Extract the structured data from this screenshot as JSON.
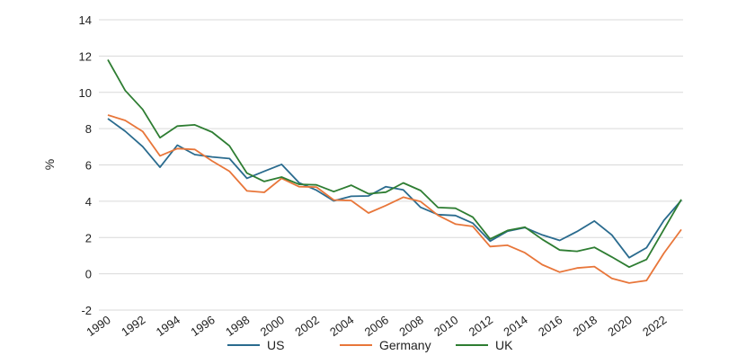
{
  "chart_data": {
    "type": "line",
    "ylabel": "%",
    "ylim": [
      -2,
      14
    ],
    "y_ticks": [
      "-2",
      "0",
      "2",
      "4",
      "6",
      "8",
      "10",
      "12",
      "14"
    ],
    "xlim": [
      1990,
      2023
    ],
    "x_tick_labels": [
      "1990",
      "1992",
      "1994",
      "1996",
      "1998",
      "2000",
      "2002",
      "2004",
      "2006",
      "2008",
      "2010",
      "2012",
      "2014",
      "2016",
      "2018",
      "2020",
      "2022"
    ],
    "x": [
      1990,
      1991,
      1992,
      1993,
      1994,
      1995,
      1996,
      1997,
      1998,
      1999,
      2000,
      2001,
      2002,
      2003,
      2004,
      2005,
      2006,
      2007,
      2008,
      2009,
      2010,
      2011,
      2012,
      2013,
      2014,
      2015,
      2016,
      2017,
      2018,
      2019,
      2020,
      2021,
      2022,
      2023
    ],
    "grid": "horizontal",
    "legend_position": "bottom",
    "series": [
      {
        "name": "US",
        "color": "#2a6b8e",
        "values": [
          8.55,
          7.86,
          7.01,
          5.87,
          7.09,
          6.57,
          6.44,
          6.35,
          5.26,
          5.65,
          6.03,
          5.02,
          4.61,
          4.02,
          4.27,
          4.29,
          4.8,
          4.63,
          3.66,
          3.26,
          3.21,
          2.79,
          1.8,
          2.35,
          2.54,
          2.14,
          1.84,
          2.33,
          2.91,
          2.14,
          0.89,
          1.44,
          2.95,
          4.05
        ]
      },
      {
        "name": "Germany",
        "color": "#e8763a",
        "values": [
          8.75,
          8.45,
          7.85,
          6.5,
          6.9,
          6.85,
          6.22,
          5.65,
          4.57,
          4.49,
          5.26,
          4.8,
          4.78,
          4.07,
          4.04,
          3.35,
          3.76,
          4.22,
          3.98,
          3.22,
          2.74,
          2.61,
          1.5,
          1.57,
          1.16,
          0.5,
          0.09,
          0.32,
          0.4,
          -0.25,
          -0.51,
          -0.37,
          1.14,
          2.44
        ]
      },
      {
        "name": "UK",
        "color": "#2e7d32",
        "values": [
          11.8,
          10.1,
          9.06,
          7.5,
          8.14,
          8.21,
          7.81,
          7.05,
          5.55,
          5.09,
          5.33,
          4.93,
          4.9,
          4.53,
          4.88,
          4.41,
          4.5,
          5.01,
          4.59,
          3.65,
          3.61,
          3.12,
          1.92,
          2.39,
          2.57,
          1.9,
          1.31,
          1.24,
          1.46,
          0.93,
          0.37,
          0.79,
          2.45,
          4.1
        ]
      }
    ]
  }
}
